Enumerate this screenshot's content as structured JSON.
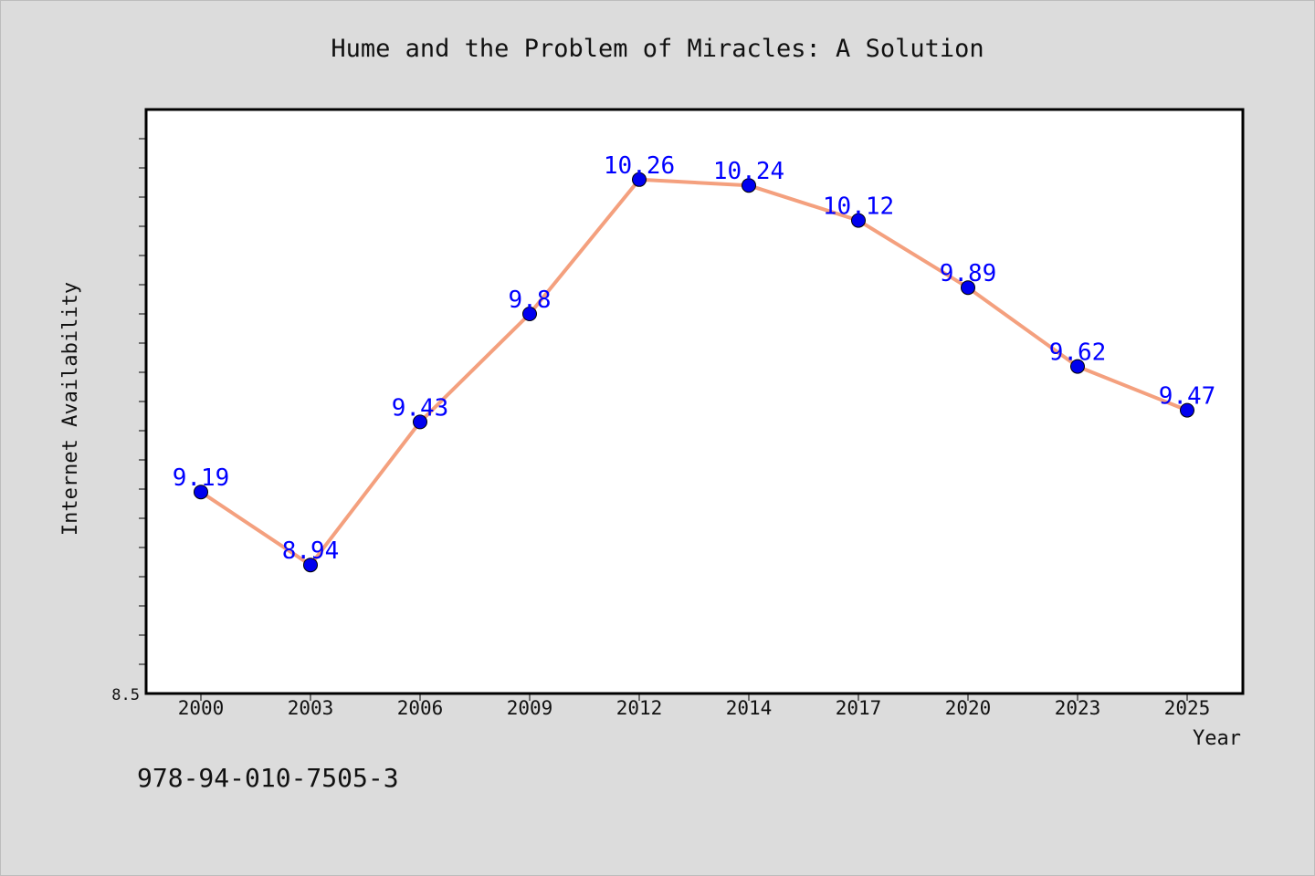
{
  "chart_data": {
    "type": "line",
    "title": "Hume and the Problem of Miracles: A Solution",
    "xlabel": "Year",
    "ylabel": "Internet Availability",
    "categories": [
      "2000",
      "2003",
      "2006",
      "2009",
      "2012",
      "2014",
      "2017",
      "2020",
      "2023",
      "2025"
    ],
    "series": [
      {
        "values": [
          9.19,
          8.94,
          9.43,
          9.8,
          10.26,
          10.24,
          10.12,
          9.89,
          9.62,
          9.47
        ],
        "data_labels": [
          "9.19",
          "8.94",
          "9.43",
          "9.8",
          "10.26",
          "10.24",
          "10.12",
          "9.89",
          "9.62",
          "9.47"
        ],
        "line_color": "#f4a07e",
        "marker_color": "#0000ee"
      }
    ],
    "ylim": [
      8.5,
      10.5
    ],
    "ytick_labels": [
      "8.5"
    ],
    "grid": false,
    "legend": "none"
  },
  "footer": {
    "isbn": "978-94-010-7505-3"
  },
  "colors": {
    "background": "#dcdcdc",
    "plot_background": "#ffffff",
    "data_label": "#0000ff"
  }
}
